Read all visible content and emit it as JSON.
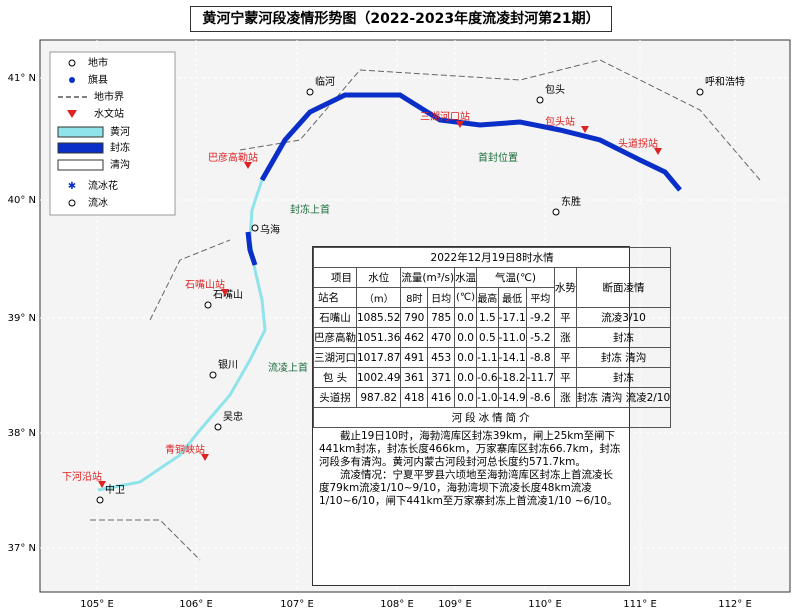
{
  "title": "黄河宁蒙河段凌情形势图（2022-2023年度流凌封河第21期）",
  "legend": [
    "地市",
    "旗县",
    "地市界",
    "水文站",
    "黄河",
    "封冻",
    "清沟",
    "流冰花",
    "流冰"
  ],
  "lat_labels": [
    "41° N",
    "40° N",
    "39° N",
    "38° N",
    "37° N"
  ],
  "lon_labels": [
    "105° E",
    "106° E",
    "107° E",
    "108° E",
    "109° E",
    "110° E",
    "111° E",
    "112° E"
  ],
  "cities": [
    "临河",
    "包头",
    "呼和浩特",
    "东胜",
    "乌海",
    "石嘴山",
    "银川",
    "吴忠",
    "中卫"
  ],
  "stations": [
    "巴彦高勒站",
    "三湖河口站",
    "包头站",
    "头道拐站",
    "石嘴山站",
    "青铜峡站",
    "下河沿站"
  ],
  "annotations": [
    "首封位置",
    "封冻上首",
    "流凌上首"
  ],
  "table": {
    "caption": "2022年12月19日8时水情",
    "header": {
      "item": "项目",
      "station": "站名",
      "level": "水位",
      "level_unit": "（m）",
      "flow": "流量(m³/s)",
      "flow_8": "8时",
      "flow_avg": "日均",
      "wtemp": "水温",
      "wtemp_unit": "(℃)",
      "air": "气温(℃)",
      "air_max": "最高",
      "air_min": "最低",
      "air_avg": "平均",
      "trend": "水势",
      "ice": "断面凌情"
    },
    "rows": [
      [
        "石嘴山",
        "1085.52",
        "790",
        "785",
        "0.0",
        "1.5",
        "-17.1",
        "-9.2",
        "平",
        "流凌3/10"
      ],
      [
        "巴彦高勒",
        "1051.36",
        "462",
        "470",
        "0.0",
        "0.5",
        "-11.0",
        "-5.2",
        "涨",
        "封冻"
      ],
      [
        "三湖河口",
        "1017.87",
        "491",
        "453",
        "0.0",
        "-1.1",
        "-14.1",
        "-8.8",
        "平",
        "封冻 清沟"
      ],
      [
        "包 头",
        "1002.49",
        "361",
        "371",
        "0.0",
        "-0.6",
        "-18.2",
        "-11.7",
        "平",
        "封冻"
      ],
      [
        "头道拐",
        "987.82",
        "418",
        "416",
        "0.0",
        "-1.0",
        "-14.9",
        "-8.6",
        "涨",
        "封冻 清沟 流凌2/10"
      ]
    ]
  },
  "briefing": {
    "title": "河段冰情简介",
    "paragraphs": [
      "截止19日10时，海勃湾库区封冻39km，闸上25km至闸下441km封冻，封冻长度466km，万家寨库区封冻66.7km，封冻河段多有清沟。黄河内蒙古河段封河总长度约571.7km。",
      "流凌情况：宁夏平罗县六顷地至海勃湾库区封冻上首流凌长度79km流凌1/10~9/10，海勃湾坝下流凌长度48km流凌1/10~6/10，闸下441km至万家寨封冻上首流凌1/10 ~6/10。"
    ]
  }
}
